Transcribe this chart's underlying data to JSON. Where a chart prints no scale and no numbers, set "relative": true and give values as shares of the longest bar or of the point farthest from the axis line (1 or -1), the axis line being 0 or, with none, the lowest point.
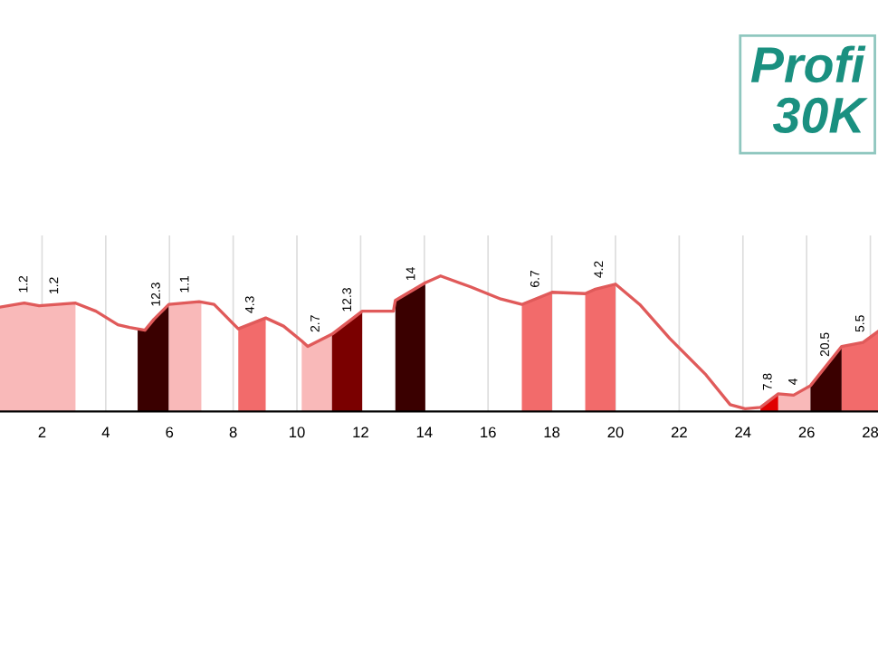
{
  "chart_data": {
    "type": "area",
    "title": "Profi\n30K",
    "relative": true,
    "grid": "x",
    "xlim": [
      0.68,
      28.24
    ],
    "xticks": [
      2,
      4,
      6,
      8,
      10,
      12,
      14,
      16,
      18,
      20,
      22,
      24,
      26,
      28
    ],
    "series": [
      {
        "type": "line",
        "color": "#e05a5a",
        "x": [
          0.68,
          1.44,
          1.91,
          3.05,
          3.69,
          4.38,
          4.75,
          5.23,
          5.51,
          5.98,
          6.93,
          7.4,
          7.78,
          8.16,
          9.02,
          9.58,
          10.15,
          10.34,
          11.1,
          12.05,
          13.03,
          13.09,
          14.03,
          14.51,
          15.45,
          16.4,
          17.06,
          18.01,
          19.05,
          19.34,
          20.0,
          20.76,
          21.7,
          22.84,
          23.6,
          24.07,
          24.55,
          25.11,
          25.59,
          26.12,
          27.1,
          27.77,
          28.24
        ],
        "values": [
          0.77,
          0.8,
          0.78,
          0.8,
          0.74,
          0.64,
          0.62,
          0.6,
          0.68,
          0.79,
          0.81,
          0.79,
          0.7,
          0.61,
          0.69,
          0.63,
          0.52,
          0.48,
          0.57,
          0.74,
          0.74,
          0.82,
          0.95,
          1.0,
          0.92,
          0.83,
          0.79,
          0.88,
          0.87,
          0.9,
          0.94,
          0.79,
          0.54,
          0.27,
          0.05,
          0.02,
          0.03,
          0.13,
          0.12,
          0.19,
          0.48,
          0.51,
          0.59
        ]
      },
      {
        "color": "#f9b9b9",
        "x": [
          0.68,
          1.44,
          1.91,
          3.05
        ],
        "values": [
          0.77,
          0.8,
          0.78,
          0.8
        ]
      },
      {
        "color": "#3a0000",
        "x": [
          5.0,
          5.23,
          5.51,
          5.98
        ],
        "values": [
          0.61,
          0.6,
          0.68,
          0.79
        ]
      },
      {
        "color": "#f9b9b9",
        "x": [
          5.98,
          6.93,
          7.0
        ],
        "values": [
          0.79,
          0.81,
          0.81
        ]
      },
      {
        "color": "#f26b6b",
        "x": [
          8.16,
          9.02
        ],
        "values": [
          0.61,
          0.69
        ]
      },
      {
        "color": "#f9b9b9",
        "x": [
          10.15,
          10.34,
          11.1
        ],
        "values": [
          0.52,
          0.48,
          0.57
        ]
      },
      {
        "color": "#7a0000",
        "x": [
          11.1,
          12.05
        ],
        "values": [
          0.57,
          0.74
        ]
      },
      {
        "color": "#3a0000",
        "x": [
          13.09,
          14.03
        ],
        "values": [
          0.82,
          0.95
        ]
      },
      {
        "color": "#f26b6b",
        "x": [
          17.06,
          18.01
        ],
        "values": [
          0.79,
          0.88
        ]
      },
      {
        "color": "#f26b6b",
        "x": [
          19.05,
          19.34,
          20.0
        ],
        "values": [
          0.87,
          0.9,
          0.94
        ]
      },
      {
        "color": "#e00000",
        "x": [
          24.55,
          25.11
        ],
        "values": [
          0.03,
          0.13
        ]
      },
      {
        "color": "#f9b9b9",
        "x": [
          25.11,
          25.59,
          26.12
        ],
        "values": [
          0.13,
          0.12,
          0.19
        ]
      },
      {
        "color": "#3a0000",
        "x": [
          26.12,
          27.1
        ],
        "values": [
          0.19,
          0.48
        ]
      },
      {
        "color": "#f26b6b",
        "x": [
          27.1,
          27.77,
          28.24
        ],
        "values": [
          0.48,
          0.51,
          0.59
        ]
      }
    ],
    "annotations": [
      {
        "text": "1.2",
        "x": 1.44,
        "y": 0.8
      },
      {
        "text": "1.2",
        "x": 2.4,
        "y": 0.79
      },
      {
        "text": "12.3",
        "x": 5.6,
        "y": 0.7
      },
      {
        "text": "1.1",
        "x": 6.5,
        "y": 0.8
      },
      {
        "text": "4.3",
        "x": 8.55,
        "y": 0.65
      },
      {
        "text": "2.7",
        "x": 10.6,
        "y": 0.51
      },
      {
        "text": "12.3",
        "x": 11.6,
        "y": 0.66
      },
      {
        "text": "14",
        "x": 13.6,
        "y": 0.89
      },
      {
        "text": "6.7",
        "x": 17.5,
        "y": 0.84
      },
      {
        "text": "4.2",
        "x": 19.5,
        "y": 0.91
      },
      {
        "text": "7.8",
        "x": 24.8,
        "y": 0.08
      },
      {
        "text": "4",
        "x": 25.6,
        "y": 0.12
      },
      {
        "text": "20.5",
        "x": 26.6,
        "y": 0.33
      },
      {
        "text": "5.5",
        "x": 27.7,
        "y": 0.51
      }
    ]
  }
}
